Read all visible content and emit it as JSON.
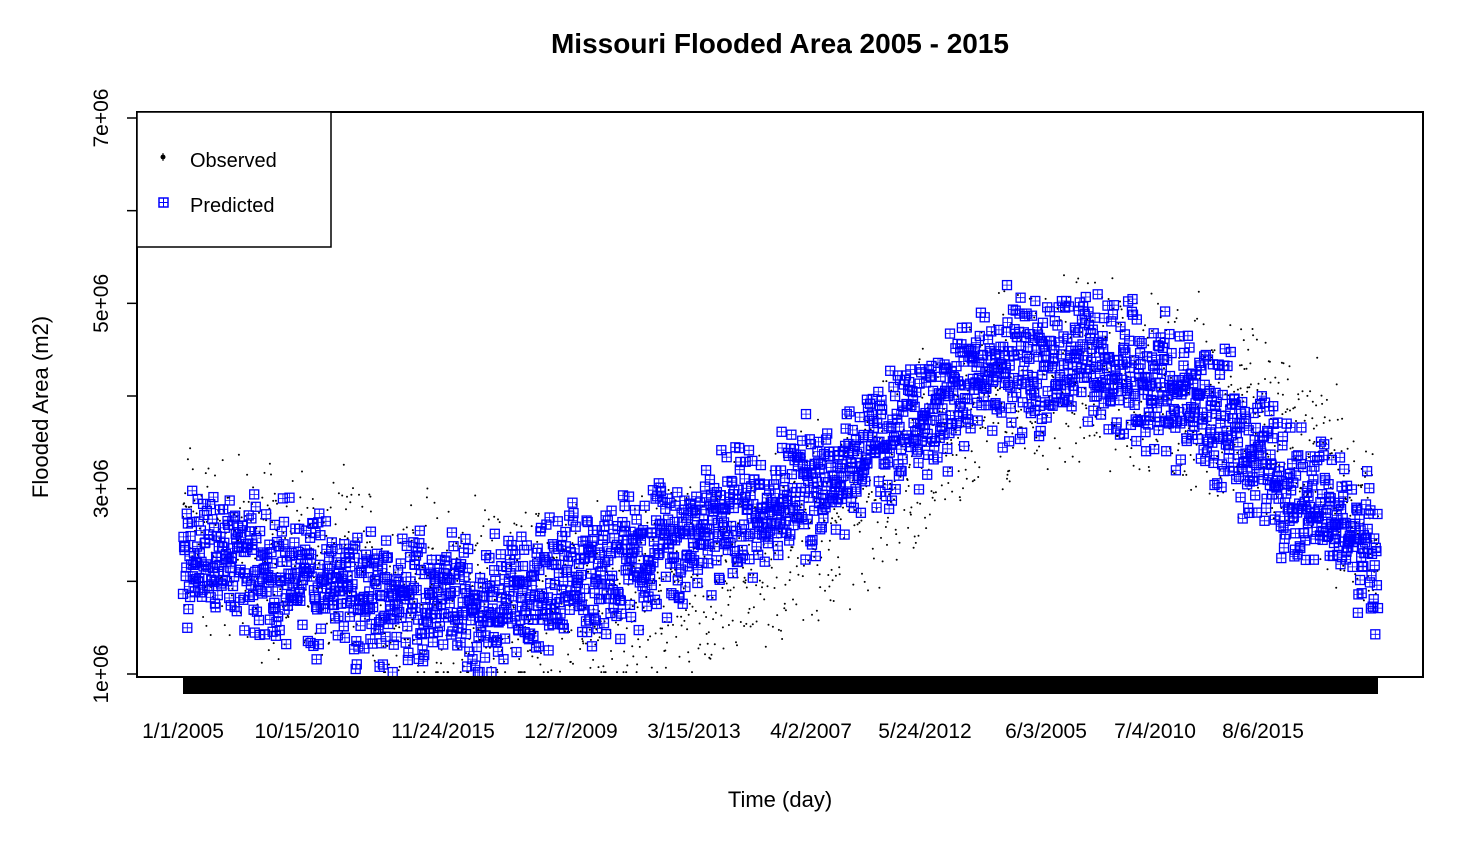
{
  "chart_data": {
    "type": "scatter",
    "title": "Missouri Flooded Area 2005 - 2015",
    "xlabel": "Time (day)",
    "ylabel": "Flooded Area (m2)",
    "x_tick_labels": [
      "1/1/2005",
      "10/15/2010",
      "11/24/2015",
      "12/7/2009",
      "3/15/2013",
      "4/2/2007",
      "5/24/2012",
      "6/3/2005",
      "7/4/2010",
      "8/6/2015"
    ],
    "y_ticks": [
      1000000,
      2000000,
      3000000,
      4000000,
      5000000,
      6000000,
      7000000
    ],
    "y_tick_labels": [
      "1e+06",
      "3e+06",
      "5e+06",
      "7e+06"
    ],
    "ylim": [
      1000000,
      7000000
    ],
    "x_index_range": [
      0,
      2200
    ],
    "legend_position": "top-left",
    "grid": false,
    "series": [
      {
        "name": "Observed",
        "color": "#000000",
        "marker": "point",
        "trend_anchors": [
          [
            0,
            2500000
          ],
          [
            120,
            2300000
          ],
          [
            300,
            2050000
          ],
          [
            450,
            1850000
          ],
          [
            600,
            1750000
          ],
          [
            750,
            1750000
          ],
          [
            900,
            1950000
          ],
          [
            1050,
            2300000
          ],
          [
            1200,
            2650000
          ],
          [
            1300,
            3100000
          ],
          [
            1400,
            3600000
          ],
          [
            1500,
            4100000
          ],
          [
            1600,
            4300000
          ],
          [
            1700,
            4200000
          ],
          [
            1800,
            4050000
          ],
          [
            1900,
            3950000
          ],
          [
            2000,
            3650000
          ],
          [
            2100,
            3150000
          ],
          [
            2200,
            2500000
          ]
        ],
        "spread": 900000
      },
      {
        "name": "Predicted",
        "color": "#0000ff",
        "marker": "square-plus",
        "trend_anchors": [
          [
            0,
            2300000
          ],
          [
            100,
            2200000
          ],
          [
            250,
            2000000
          ],
          [
            400,
            1800000
          ],
          [
            550,
            1800000
          ],
          [
            700,
            1950000
          ],
          [
            850,
            2350000
          ],
          [
            1000,
            2700000
          ],
          [
            1150,
            3000000
          ],
          [
            1250,
            3350000
          ],
          [
            1350,
            3700000
          ],
          [
            1450,
            4200000
          ],
          [
            1550,
            4350000
          ],
          [
            1650,
            4350000
          ],
          [
            1750,
            4250000
          ],
          [
            1850,
            4000000
          ],
          [
            1950,
            3500000
          ],
          [
            2050,
            3000000
          ],
          [
            2150,
            2500000
          ],
          [
            2200,
            2300000
          ]
        ],
        "spread": 700000
      }
    ]
  },
  "legend": {
    "items": [
      {
        "label": "Observed",
        "symbol": "point",
        "color": "#000000"
      },
      {
        "label": "Predicted",
        "symbol": "square-plus",
        "color": "#0000ff"
      }
    ]
  }
}
